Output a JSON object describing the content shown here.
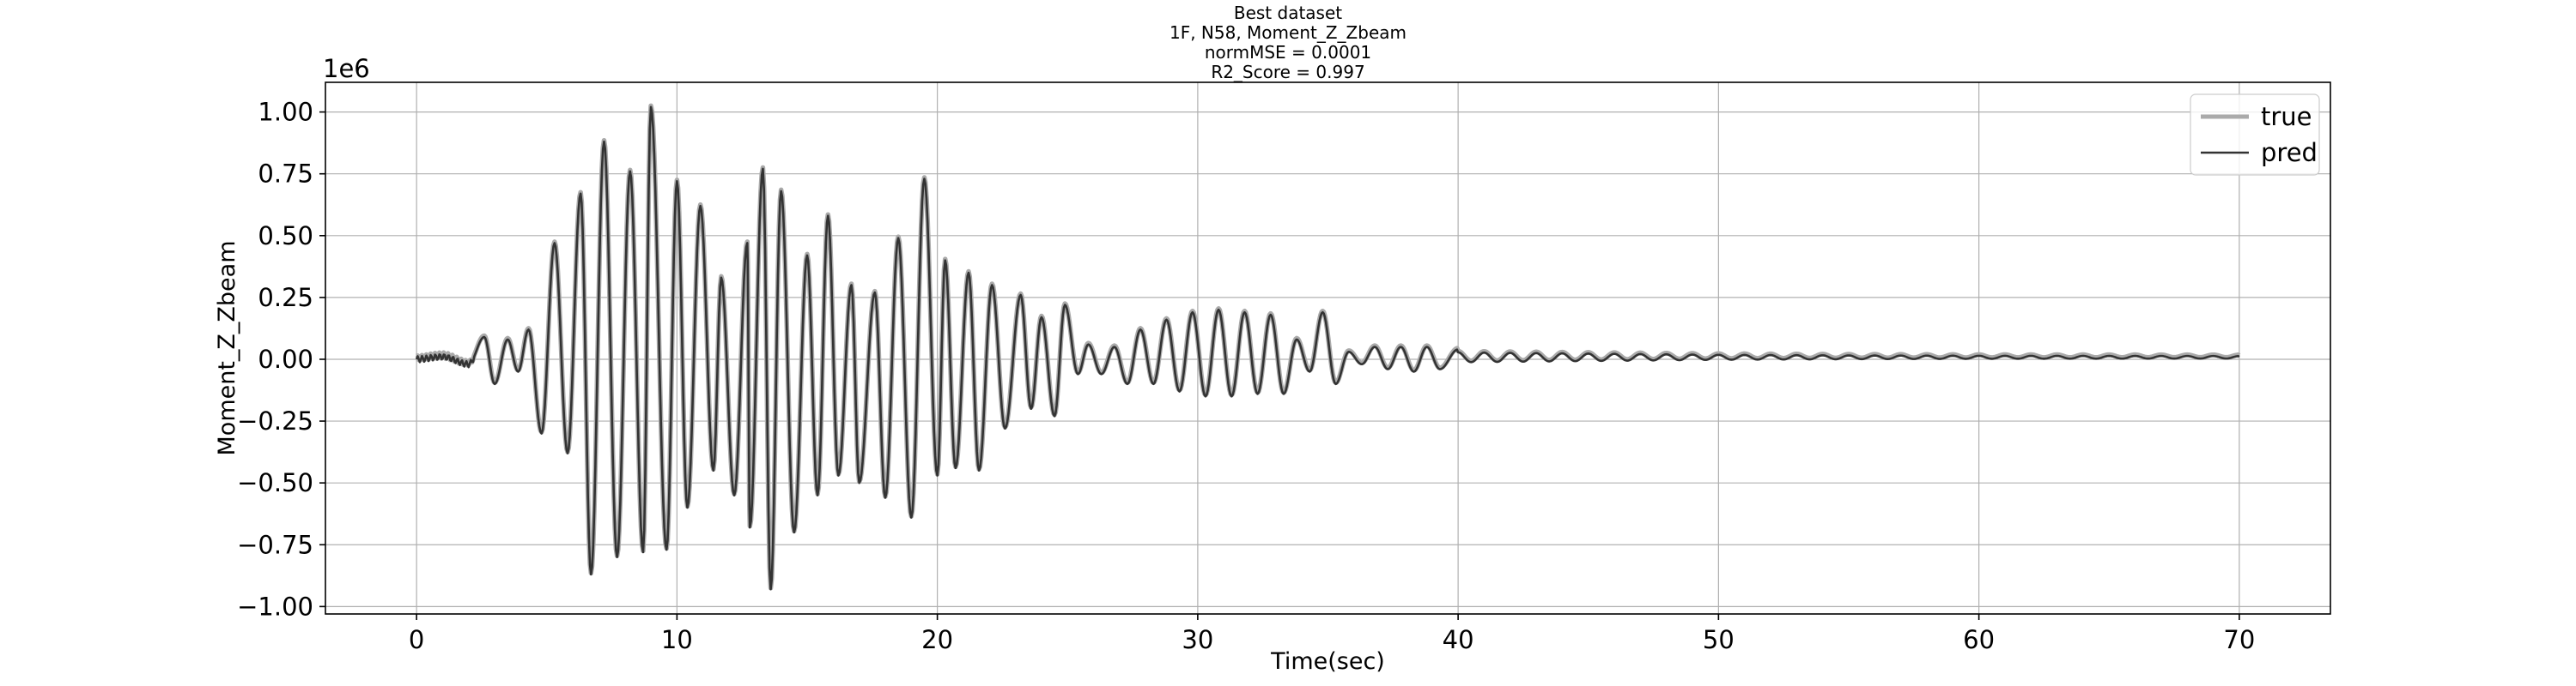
{
  "chart_data": {
    "type": "line",
    "title_lines": [
      "Best dataset",
      "1F, N58, Moment_Z_Zbeam",
      "normMSE = 0.0001",
      "R2_Score = 0.997"
    ],
    "xlabel": "Time(sec)",
    "ylabel": "Moment_Z_Zbeam",
    "y_offset_text": "1e6",
    "xlim": [
      -3.5,
      73.5
    ],
    "ylim": [
      -1.03,
      1.12
    ],
    "x_ticks": [
      0,
      10,
      20,
      30,
      40,
      50,
      60,
      70
    ],
    "x_tick_labels": [
      "0",
      "10",
      "20",
      "30",
      "40",
      "50",
      "60",
      "70"
    ],
    "y_ticks": [
      1.0,
      0.75,
      0.5,
      0.25,
      0.0,
      -0.25,
      -0.5,
      -0.75,
      -1.0
    ],
    "y_tick_labels": [
      "1.00",
      "0.75",
      "0.50",
      "0.25",
      "0.00",
      "−0.25",
      "−0.50",
      "−0.75",
      "−1.00"
    ],
    "grid": true,
    "legend_position": "top-right",
    "series": [
      {
        "name": "true",
        "color": "#aaaaaa"
      },
      {
        "name": "pred",
        "color": "#333333"
      }
    ],
    "envelope_peaks": [
      [
        0.0,
        0.0
      ],
      [
        1.0,
        0.01
      ],
      [
        2.0,
        -0.02
      ],
      [
        2.6,
        0.09
      ],
      [
        3.0,
        -0.1
      ],
      [
        3.5,
        0.08
      ],
      [
        3.9,
        -0.05
      ],
      [
        4.3,
        0.12
      ],
      [
        4.8,
        -0.3
      ],
      [
        5.3,
        0.47
      ],
      [
        5.8,
        -0.38
      ],
      [
        6.3,
        0.67
      ],
      [
        6.7,
        -0.87
      ],
      [
        7.2,
        0.88
      ],
      [
        7.7,
        -0.8
      ],
      [
        8.2,
        0.76
      ],
      [
        8.7,
        -0.78
      ],
      [
        9.0,
        1.02
      ],
      [
        9.6,
        -0.77
      ],
      [
        10.0,
        0.72
      ],
      [
        10.4,
        -0.6
      ],
      [
        10.9,
        0.62
      ],
      [
        11.4,
        -0.45
      ],
      [
        11.7,
        0.33
      ],
      [
        12.2,
        -0.55
      ],
      [
        12.7,
        0.47
      ],
      [
        12.8,
        -0.68
      ],
      [
        13.3,
        0.77
      ],
      [
        13.6,
        -0.93
      ],
      [
        14.0,
        0.68
      ],
      [
        14.5,
        -0.7
      ],
      [
        15.0,
        0.42
      ],
      [
        15.4,
        -0.55
      ],
      [
        15.8,
        0.58
      ],
      [
        16.2,
        -0.47
      ],
      [
        16.7,
        0.3
      ],
      [
        17.0,
        -0.5
      ],
      [
        17.6,
        0.27
      ],
      [
        18.0,
        -0.56
      ],
      [
        18.5,
        0.49
      ],
      [
        19.0,
        -0.64
      ],
      [
        19.5,
        0.73
      ],
      [
        20.0,
        -0.47
      ],
      [
        20.3,
        0.4
      ],
      [
        20.7,
        -0.44
      ],
      [
        21.2,
        0.35
      ],
      [
        21.6,
        -0.45
      ],
      [
        22.1,
        0.3
      ],
      [
        22.6,
        -0.28
      ],
      [
        23.2,
        0.26
      ],
      [
        23.6,
        -0.2
      ],
      [
        24.0,
        0.17
      ],
      [
        24.5,
        -0.23
      ],
      [
        24.9,
        0.22
      ],
      [
        25.4,
        -0.06
      ],
      [
        25.8,
        0.06
      ],
      [
        26.3,
        -0.06
      ],
      [
        26.8,
        0.05
      ],
      [
        27.3,
        -0.1
      ],
      [
        27.8,
        0.12
      ],
      [
        28.3,
        -0.1
      ],
      [
        28.8,
        0.16
      ],
      [
        29.3,
        -0.13
      ],
      [
        29.8,
        0.19
      ],
      [
        30.3,
        -0.15
      ],
      [
        30.8,
        0.2
      ],
      [
        31.3,
        -0.15
      ],
      [
        31.8,
        0.19
      ],
      [
        32.3,
        -0.14
      ],
      [
        32.8,
        0.18
      ],
      [
        33.3,
        -0.14
      ],
      [
        33.8,
        0.08
      ],
      [
        34.3,
        -0.05
      ],
      [
        34.8,
        0.19
      ],
      [
        35.3,
        -0.1
      ],
      [
        35.8,
        0.03
      ],
      [
        36.3,
        -0.02
      ],
      [
        36.8,
        0.05
      ],
      [
        37.3,
        -0.04
      ],
      [
        37.8,
        0.05
      ],
      [
        38.3,
        -0.05
      ],
      [
        38.8,
        0.05
      ],
      [
        39.3,
        -0.04
      ],
      [
        40.0,
        0.04
      ],
      [
        45.0,
        0.03
      ],
      [
        50.0,
        0.02
      ],
      [
        55.0,
        0.015
      ],
      [
        60.0,
        0.012
      ],
      [
        70.0,
        0.01
      ]
    ]
  },
  "page": {
    "background": "#ffffff",
    "grid_color": "#b0b0b0",
    "axes_color": "#000000"
  }
}
